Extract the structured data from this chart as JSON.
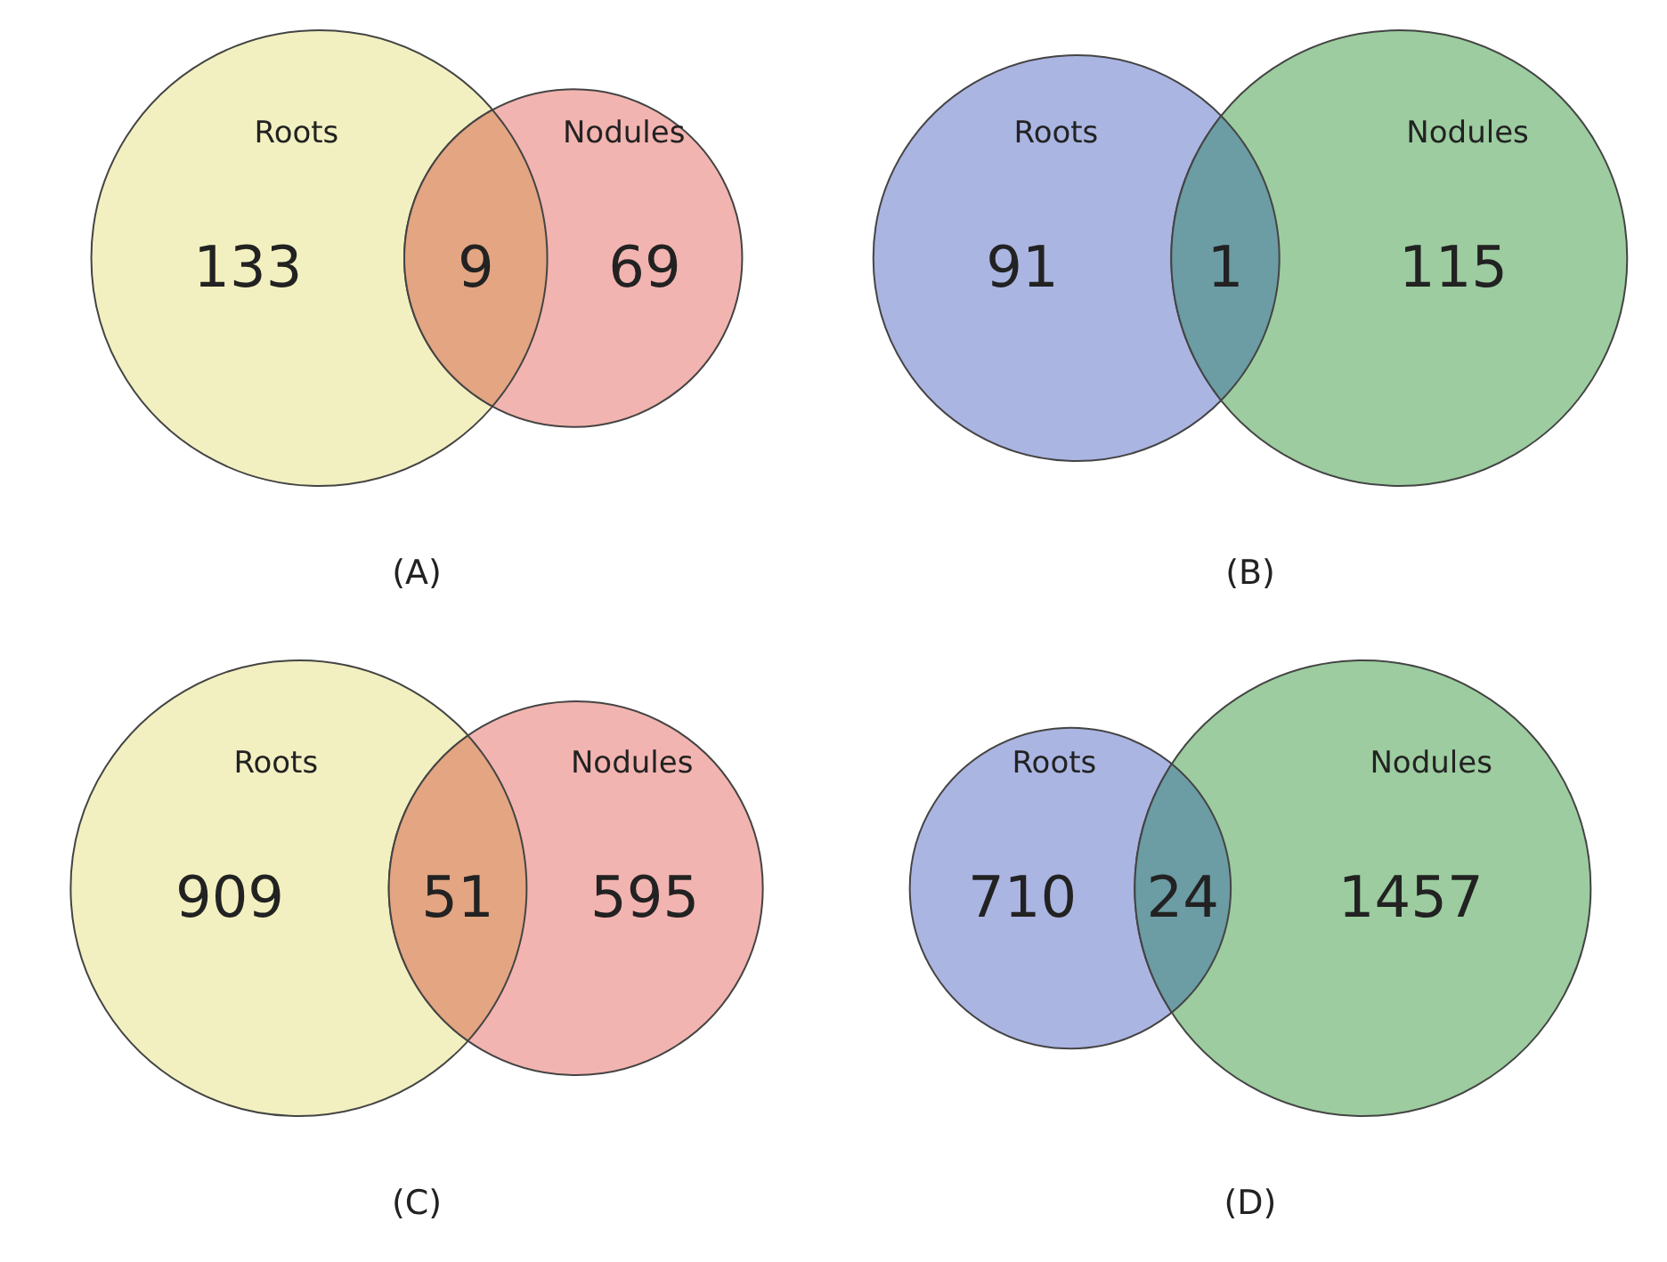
{
  "chart_data": [
    {
      "type": "other",
      "title": "(A)",
      "categories": [
        "Roots",
        null,
        "Nodules"
      ],
      "values": [
        133,
        9,
        69
      ],
      "colors": [
        "#f2f0c0",
        "#e3a582",
        "#f2b4b0"
      ],
      "data_labels": true
    },
    {
      "type": "other",
      "title": "(B)",
      "categories": [
        "Roots",
        null,
        "Nodules"
      ],
      "values": [
        91,
        1,
        115
      ],
      "colors": [
        "#aab5e2",
        "#6c9ca4",
        "#9ccc9f"
      ],
      "data_labels": true
    },
    {
      "type": "other",
      "title": "(C)",
      "categories": [
        "Roots",
        null,
        "Nodules"
      ],
      "values": [
        909,
        51,
        595
      ],
      "colors": [
        "#f2f0c0",
        "#e3a582",
        "#f2b4b0"
      ],
      "data_labels": true
    },
    {
      "type": "other",
      "title": "(D)",
      "categories": [
        "Roots",
        null,
        "Nodules"
      ],
      "values": [
        710,
        24,
        1457
      ],
      "colors": [
        "#aab5e2",
        "#6c9ca4",
        "#9ccc9f"
      ],
      "data_labels": true
    }
  ]
}
